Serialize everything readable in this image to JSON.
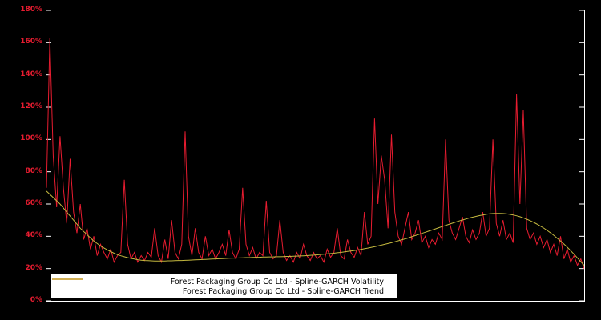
{
  "chart": {
    "background_color": "#000000",
    "border_color": "#ffffff",
    "axis_label_color": "#e81c30",
    "legend_background": "#ffffff",
    "legend_text_color": "#000000"
  },
  "chart_data": {
    "type": "line",
    "title": "",
    "xlabel": "",
    "ylabel": "",
    "ylim": [
      0,
      180
    ],
    "ytick_step": 20,
    "ytick_labels": [
      "0%",
      "20%",
      "40%",
      "60%",
      "80%",
      "100%",
      "120%",
      "140%",
      "160%",
      "180%"
    ],
    "xtick_labels": [],
    "grid": false,
    "legend_position": "bottom-left-inside",
    "series": [
      {
        "name": "Forest Packaging Group Co Ltd - Spline-GARCH Volatility",
        "color": "#e81c30",
        "unit": "%",
        "values": [
          70,
          163,
          90,
          58,
          102,
          70,
          48,
          88,
          55,
          42,
          60,
          38,
          45,
          32,
          40,
          28,
          35,
          30,
          26,
          32,
          24,
          28,
          30,
          75,
          35,
          26,
          30,
          24,
          28,
          25,
          30,
          27,
          45,
          28,
          24,
          38,
          26,
          50,
          30,
          26,
          35,
          105,
          40,
          28,
          45,
          30,
          26,
          40,
          28,
          32,
          26,
          30,
          35,
          28,
          44,
          30,
          26,
          32,
          70,
          35,
          28,
          33,
          26,
          30,
          28,
          62,
          30,
          26,
          28,
          50,
          30,
          25,
          28,
          24,
          30,
          26,
          35,
          28,
          25,
          30,
          26,
          28,
          24,
          32,
          27,
          30,
          45,
          28,
          26,
          38,
          30,
          27,
          33,
          28,
          55,
          35,
          40,
          113,
          60,
          90,
          75,
          45,
          103,
          55,
          40,
          35,
          45,
          55,
          38,
          42,
          50,
          36,
          40,
          33,
          38,
          35,
          42,
          38,
          100,
          50,
          42,
          38,
          45,
          52,
          40,
          36,
          44,
          38,
          42,
          55,
          40,
          45,
          100,
          48,
          40,
          50,
          38,
          42,
          36,
          128,
          60,
          118,
          45,
          38,
          42,
          35,
          40,
          33,
          38,
          30,
          35,
          28,
          40,
          26,
          32,
          24,
          28,
          22,
          26,
          20
        ]
      },
      {
        "name": "Forest Packaging Group Co Ltd - Spline-GARCH Trend",
        "color": "#c5b93f",
        "unit": "%",
        "values": [
          68,
          66,
          64,
          62,
          60,
          57.5,
          55,
          52.5,
          50,
          47.5,
          45,
          43,
          41,
          39,
          37,
          35.5,
          34,
          32.8,
          31.6,
          30.5,
          29.5,
          28.6,
          27.9,
          27.3,
          26.8,
          26.3,
          25.9,
          25.5,
          25.2,
          25,
          24.9,
          24.8,
          24.7,
          24.7,
          24.7,
          24.7,
          24.8,
          24.8,
          24.9,
          25,
          25,
          25.1,
          25.2,
          25.3,
          25.4,
          25.5,
          25.6,
          25.7,
          25.8,
          25.9,
          26,
          26.1,
          26.2,
          26.3,
          26.4,
          26.5,
          26.5,
          26.6,
          26.7,
          26.8,
          26.8,
          26.9,
          27,
          27,
          27.1,
          27.1,
          27.2,
          27.2,
          27.3,
          27.3,
          27.4,
          27.5,
          27.5,
          27.6,
          27.7,
          27.8,
          27.9,
          28,
          28.2,
          28.3,
          28.5,
          28.7,
          28.9,
          29.1,
          29.3,
          29.5,
          29.8,
          30,
          30.3,
          30.6,
          30.9,
          31.2,
          31.5,
          31.9,
          32.3,
          32.7,
          33.1,
          33.5,
          34,
          34.5,
          35,
          35.5,
          36,
          36.6,
          37.2,
          37.8,
          38.4,
          39,
          39.7,
          40.4,
          41.1,
          41.8,
          42.5,
          43.2,
          43.9,
          44.6,
          45.3,
          46,
          46.7,
          47.4,
          48.1,
          48.8,
          49.5,
          50.1,
          50.7,
          51.3,
          51.8,
          52.3,
          52.8,
          53.2,
          53.6,
          53.9,
          54.1,
          54.2,
          54.2,
          54.1,
          53.9,
          53.6,
          53.2,
          52.7,
          52.1,
          51.4,
          50.6,
          49.7,
          48.7,
          47.6,
          46.4,
          45.1,
          43.7,
          42.2,
          40.6,
          38.9,
          37.1,
          35.2,
          33.2,
          31.1,
          28.9,
          26.6,
          24.2,
          22
        ]
      }
    ]
  }
}
